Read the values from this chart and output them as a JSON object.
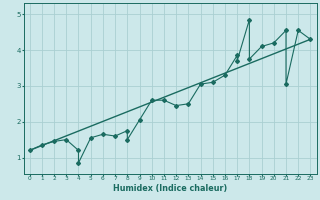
{
  "xlabel": "Humidex (Indice chaleur)",
  "ylabel": "",
  "bg_color": "#cce8ea",
  "line_color": "#1a6b60",
  "grid_color": "#aacfd2",
  "xlim": [
    -0.5,
    23.5
  ],
  "ylim": [
    0.55,
    5.3
  ],
  "xticks": [
    0,
    1,
    2,
    3,
    4,
    5,
    6,
    7,
    8,
    9,
    10,
    11,
    12,
    13,
    14,
    15,
    16,
    17,
    18,
    19,
    20,
    21,
    22,
    23
  ],
  "yticks": [
    1,
    2,
    3,
    4,
    5
  ],
  "scatter_x": [
    0,
    1,
    2,
    3,
    4,
    4,
    5,
    6,
    7,
    8,
    8,
    9,
    10,
    11,
    12,
    13,
    14,
    15,
    16,
    17,
    17,
    18,
    18,
    19,
    20,
    21,
    21,
    22,
    23
  ],
  "scatter_y": [
    1.2,
    1.35,
    1.45,
    1.5,
    1.2,
    0.85,
    1.55,
    1.65,
    1.6,
    1.75,
    1.5,
    2.05,
    2.6,
    2.6,
    2.45,
    2.5,
    3.05,
    3.1,
    3.3,
    3.85,
    3.7,
    4.85,
    3.75,
    4.1,
    4.2,
    4.55,
    3.05,
    4.55,
    4.3
  ],
  "trend_x": [
    0,
    23
  ],
  "trend_y": [
    1.2,
    4.3
  ]
}
